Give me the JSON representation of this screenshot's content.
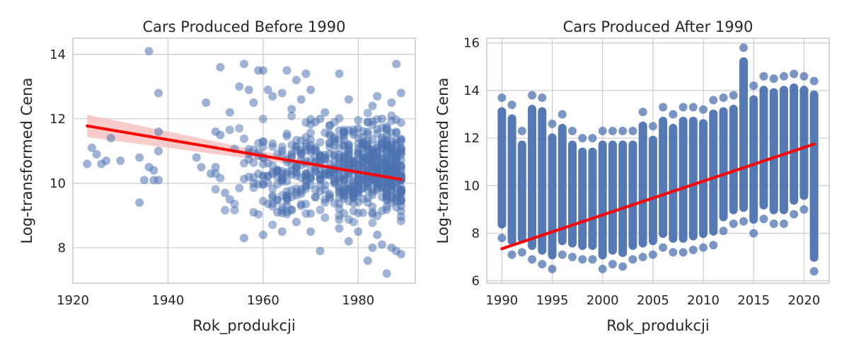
{
  "chart_data": [
    {
      "type": "scatter",
      "title": "Cars Produced Before 1990",
      "xlabel": "Rok_produkcji",
      "ylabel": "Log-transformed Cena",
      "xlim": [
        1920,
        1992
      ],
      "ylim": [
        6.9,
        14.5
      ],
      "xticks": [
        1920,
        1940,
        1960,
        1980
      ],
      "yticks": [
        8,
        10,
        12,
        14
      ],
      "grid": true,
      "point_color": "#4c72b0",
      "regression": {
        "x": [
          1923,
          1989
        ],
        "y": [
          11.78,
          10.12
        ],
        "color": "#ff0000",
        "ci_color": "#f7b6b6"
      },
      "points": [
        [
          1923,
          10.6
        ],
        [
          1924,
          11.1
        ],
        [
          1925,
          10.9
        ],
        [
          1926,
          10.6
        ],
        [
          1927,
          10.7
        ],
        [
          1928,
          11.4
        ],
        [
          1930,
          10.7
        ],
        [
          1934,
          10.8
        ],
        [
          1934,
          9.4
        ],
        [
          1935,
          10.1
        ],
        [
          1936,
          14.1
        ],
        [
          1936,
          10.5
        ],
        [
          1937,
          10.4
        ],
        [
          1937,
          10.1
        ],
        [
          1938,
          12.8
        ],
        [
          1938,
          11.6
        ],
        [
          1938,
          11.0
        ],
        [
          1938,
          10.1
        ],
        [
          1946,
          10.8
        ],
        [
          1947,
          10.5
        ],
        [
          1948,
          12.5
        ],
        [
          1949,
          10.3
        ],
        [
          1950,
          11.6
        ],
        [
          1950,
          10.5
        ],
        [
          1951,
          13.6
        ],
        [
          1951,
          11.5
        ],
        [
          1952,
          9.7
        ],
        [
          1953,
          12.2
        ],
        [
          1953,
          9.5
        ],
        [
          1955,
          13.0
        ],
        [
          1956,
          13.7
        ],
        [
          1956,
          8.3
        ],
        [
          1957,
          12.9
        ],
        [
          1958,
          12.5
        ],
        [
          1958,
          9.1
        ],
        [
          1959,
          13.5
        ],
        [
          1960,
          13.5
        ],
        [
          1960,
          8.4
        ],
        [
          1961,
          12.9
        ],
        [
          1962,
          12.7
        ],
        [
          1963,
          9.1
        ],
        [
          1964,
          12.8
        ],
        [
          1964,
          8.5
        ],
        [
          1965,
          13.5
        ],
        [
          1966,
          12.3
        ],
        [
          1967,
          13.2
        ],
        [
          1967,
          8.8
        ],
        [
          1968,
          12.6
        ],
        [
          1969,
          13.4
        ],
        [
          1970,
          12.9
        ],
        [
          1970,
          8.5
        ],
        [
          1971,
          11.9
        ],
        [
          1972,
          12.0
        ],
        [
          1972,
          7.9
        ],
        [
          1973,
          12.2
        ],
        [
          1974,
          11.8
        ],
        [
          1975,
          11.3
        ],
        [
          1976,
          13.4
        ],
        [
          1976,
          8.6
        ],
        [
          1978,
          12.6
        ],
        [
          1978,
          8.2
        ],
        [
          1980,
          11.7
        ],
        [
          1980,
          8.5
        ],
        [
          1981,
          11.2
        ],
        [
          1982,
          7.6
        ],
        [
          1982,
          11.6
        ],
        [
          1983,
          12.4
        ],
        [
          1983,
          8.0
        ],
        [
          1984,
          12.7
        ],
        [
          1984,
          8.4
        ],
        [
          1985,
          12.0
        ],
        [
          1985,
          8.1
        ],
        [
          1986,
          11.5
        ],
        [
          1986,
          7.2
        ],
        [
          1987,
          12.5
        ],
        [
          1987,
          8.0
        ],
        [
          1988,
          13.7
        ],
        [
          1988,
          7.9
        ],
        [
          1989,
          12.8
        ],
        [
          1989,
          7.8
        ],
        [
          1989,
          9.3
        ]
      ]
    },
    {
      "type": "scatter",
      "title": "Cars Produced After 1990",
      "xlabel": "Rok_produkcji",
      "ylabel": "Log-transformed Cena",
      "xlim": [
        1988.5,
        2022.5
      ],
      "ylim": [
        5.9,
        16.2
      ],
      "xticks": [
        1990,
        1995,
        2000,
        2005,
        2010,
        2015,
        2020
      ],
      "yticks": [
        6,
        8,
        10,
        12,
        14,
        16
      ],
      "grid": true,
      "point_color": "#4c72b0",
      "regression": {
        "x": [
          1990,
          2021
        ],
        "y": [
          7.35,
          11.75
        ],
        "color": "#ff0000"
      },
      "year_ranges": [
        [
          1990,
          7.8,
          13.7
        ],
        [
          1991,
          7.1,
          13.4
        ],
        [
          1992,
          7.2,
          12.3
        ],
        [
          1993,
          6.9,
          13.8
        ],
        [
          1994,
          6.7,
          13.7
        ],
        [
          1995,
          6.5,
          12.6
        ],
        [
          1996,
          7.1,
          13.0
        ],
        [
          1997,
          7.0,
          12.3
        ],
        [
          1998,
          6.9,
          12.0
        ],
        [
          1999,
          6.9,
          12.0
        ],
        [
          2000,
          6.5,
          12.3
        ],
        [
          2001,
          6.7,
          12.3
        ],
        [
          2002,
          6.6,
          12.3
        ],
        [
          2003,
          6.9,
          12.3
        ],
        [
          2004,
          7.0,
          13.1
        ],
        [
          2005,
          7.1,
          12.5
        ],
        [
          2006,
          7.4,
          13.3
        ],
        [
          2007,
          7.2,
          13.0
        ],
        [
          2008,
          7.2,
          13.3
        ],
        [
          2009,
          7.3,
          13.3
        ],
        [
          2010,
          7.4,
          13.2
        ],
        [
          2011,
          7.5,
          13.6
        ],
        [
          2012,
          8.1,
          13.7
        ],
        [
          2013,
          8.4,
          13.8
        ],
        [
          2014,
          8.5,
          15.8
        ],
        [
          2015,
          8.0,
          14.2
        ],
        [
          2016,
          8.6,
          14.6
        ],
        [
          2017,
          8.4,
          14.5
        ],
        [
          2018,
          8.4,
          14.6
        ],
        [
          2019,
          8.8,
          14.7
        ],
        [
          2020,
          9.0,
          14.6
        ],
        [
          2021,
          6.4,
          14.4
        ]
      ]
    }
  ]
}
